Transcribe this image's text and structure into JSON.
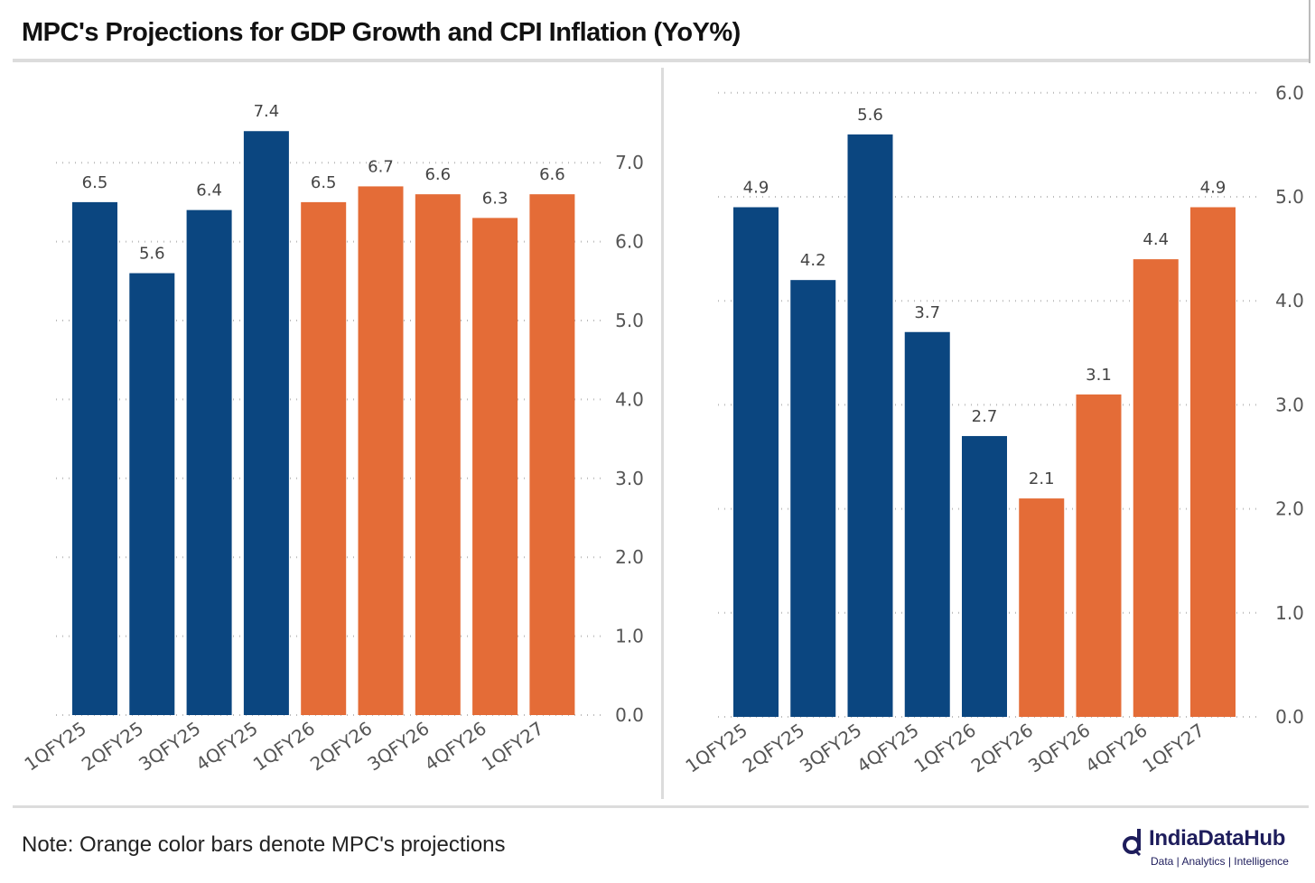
{
  "title": "MPC's Projections for GDP Growth and CPI Inflation (YoY%)",
  "note": "Note: Orange color bars denote MPC's projections",
  "logo": {
    "name": "IndiaDataHub",
    "tagline": "Data | Analytics | Intelligence"
  },
  "colors": {
    "actual": "#0b4680",
    "projection": "#e46c37"
  },
  "chart_data": [
    {
      "type": "bar",
      "title": "GDP Growth",
      "categories": [
        "1QFY25",
        "2QFY25",
        "3QFY25",
        "4QFY25",
        "1QFY26",
        "2QFY26",
        "3QFY26",
        "4QFY26",
        "1QFY27"
      ],
      "values": [
        6.5,
        5.6,
        6.4,
        7.4,
        6.5,
        6.7,
        6.6,
        6.3,
        6.6
      ],
      "projection": [
        false,
        false,
        false,
        false,
        true,
        true,
        true,
        true,
        true
      ],
      "ylim": [
        0,
        7
      ],
      "yticks": [
        "0.0",
        "1.0",
        "2.0",
        "3.0",
        "4.0",
        "5.0",
        "6.0",
        "7.0"
      ],
      "grid": true,
      "yaxis_side": "right"
    },
    {
      "type": "bar",
      "title": "CPI Inflation",
      "categories": [
        "1QFY25",
        "2QFY25",
        "3QFY25",
        "4QFY25",
        "1QFY26",
        "2QFY26",
        "3QFY26",
        "4QFY26",
        "1QFY27"
      ],
      "values": [
        4.9,
        4.2,
        5.6,
        3.7,
        2.7,
        2.1,
        3.1,
        4.4,
        4.9
      ],
      "projection": [
        false,
        false,
        false,
        false,
        false,
        true,
        true,
        true,
        true
      ],
      "ylim": [
        0,
        6
      ],
      "yticks": [
        "0.0",
        "1.0",
        "2.0",
        "3.0",
        "4.0",
        "5.0",
        "6.0"
      ],
      "grid": true,
      "yaxis_side": "right"
    }
  ]
}
